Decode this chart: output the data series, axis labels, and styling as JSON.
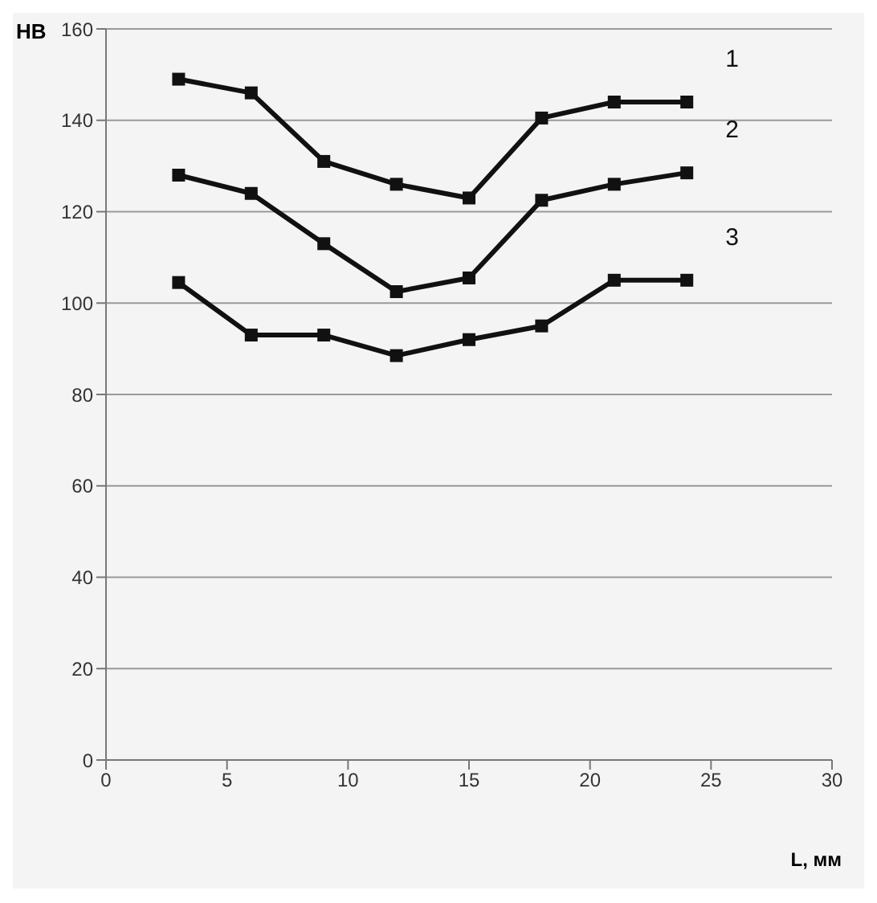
{
  "chart_data": {
    "type": "line",
    "xlabel": "L, мм",
    "ylabel": "HB",
    "x": [
      3,
      6,
      9,
      12,
      15,
      18,
      21,
      24
    ],
    "series": [
      {
        "name": "1",
        "color": "#111111",
        "values": [
          149,
          146,
          131,
          126,
          123,
          140.5,
          144,
          144
        ]
      },
      {
        "name": "2",
        "color": "#111111",
        "values": [
          128,
          124,
          113,
          102.5,
          105.5,
          122.5,
          126,
          128.5
        ]
      },
      {
        "name": "3",
        "color": "#111111",
        "values": [
          104.5,
          93,
          93,
          88.5,
          92,
          95,
          105,
          105
        ]
      }
    ],
    "xlim": [
      0,
      30
    ],
    "xticks": [
      0,
      5,
      10,
      15,
      20,
      25,
      30
    ],
    "ylim": [
      0,
      160
    ],
    "yticks": [
      0,
      20,
      40,
      60,
      80,
      100,
      120,
      140,
      160
    ],
    "grid": "y",
    "marker": "square",
    "line_style": "solid"
  }
}
